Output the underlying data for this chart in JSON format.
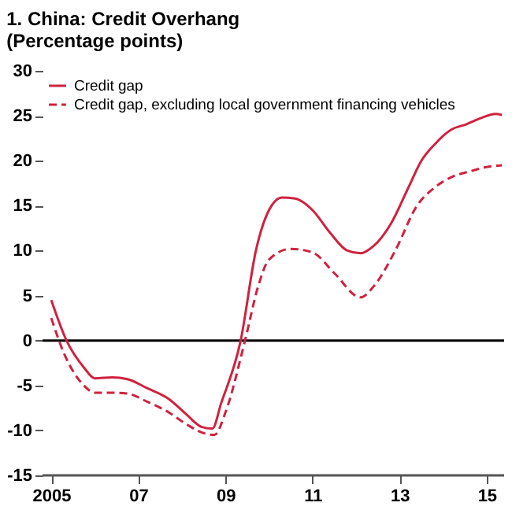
{
  "chart_data": {
    "type": "line",
    "title": "1. China: Credit Overhang",
    "subtitle": "(Percentage points)",
    "xlim": [
      2004.8,
      2015.4
    ],
    "xticks": [
      {
        "value": 2005,
        "label": "2005"
      },
      {
        "value": 2007,
        "label": "07"
      },
      {
        "value": 2009,
        "label": "09"
      },
      {
        "value": 2011,
        "label": "11"
      },
      {
        "value": 2013,
        "label": "13"
      },
      {
        "value": 2015,
        "label": "15"
      }
    ],
    "ylim": [
      -15,
      30
    ],
    "yticks": [
      -15,
      -10,
      -5,
      0,
      5,
      10,
      15,
      20,
      25,
      30
    ],
    "grid": false,
    "legend": "top left",
    "ref_lines": [
      {
        "axis": "y",
        "value": 0,
        "color": "#000000"
      }
    ],
    "series": [
      {
        "name": "Credit gap",
        "color": "#d0223f",
        "line_style": "solid",
        "x": [
          2005.0,
          2005.35,
          2005.75,
          2006.0,
          2006.4,
          2006.75,
          2007.2,
          2007.7,
          2008.1,
          2008.45,
          2008.7,
          2008.9,
          2009.35,
          2009.7,
          2010.0,
          2010.3,
          2010.6,
          2011.0,
          2011.4,
          2011.8,
          2012.1,
          2012.4,
          2012.8,
          2013.2,
          2013.5,
          2013.8,
          2014.2,
          2014.5,
          2014.9,
          2015.2,
          2015.35
        ],
        "values": [
          4.5,
          0,
          -3,
          -4.2,
          -4.1,
          -4.3,
          -5.3,
          -6.5,
          -8.2,
          -9.6,
          -9.8,
          -7,
          0,
          10,
          14.5,
          15.9,
          15.8,
          14.5,
          12,
          10,
          9.7,
          10.5,
          13,
          17,
          20,
          21.8,
          23.5,
          24,
          24.8,
          25.2,
          25.1
        ]
      },
      {
        "name": "Credit gap, excluding local government financing vehicles",
        "color": "#d0223f",
        "line_style": "dashed",
        "x": [
          2005.0,
          2005.3,
          2005.75,
          2006.0,
          2006.4,
          2006.75,
          2007.2,
          2007.7,
          2008.1,
          2008.5,
          2008.75,
          2009.0,
          2009.45,
          2009.75,
          2010.0,
          2010.5,
          2011.0,
          2011.5,
          2012.1,
          2012.4,
          2012.9,
          2013.4,
          2013.8,
          2014.2,
          2014.6,
          2015.0,
          2015.35
        ],
        "values": [
          2.5,
          -1.5,
          -5,
          -5.8,
          -5.8,
          -5.9,
          -6.8,
          -8,
          -9.3,
          -10.3,
          -10.5,
          -8,
          0,
          6,
          9,
          10.2,
          9.8,
          7.5,
          4.8,
          6,
          10,
          15,
          17,
          18.2,
          18.8,
          19.3,
          19.5
        ]
      }
    ]
  }
}
